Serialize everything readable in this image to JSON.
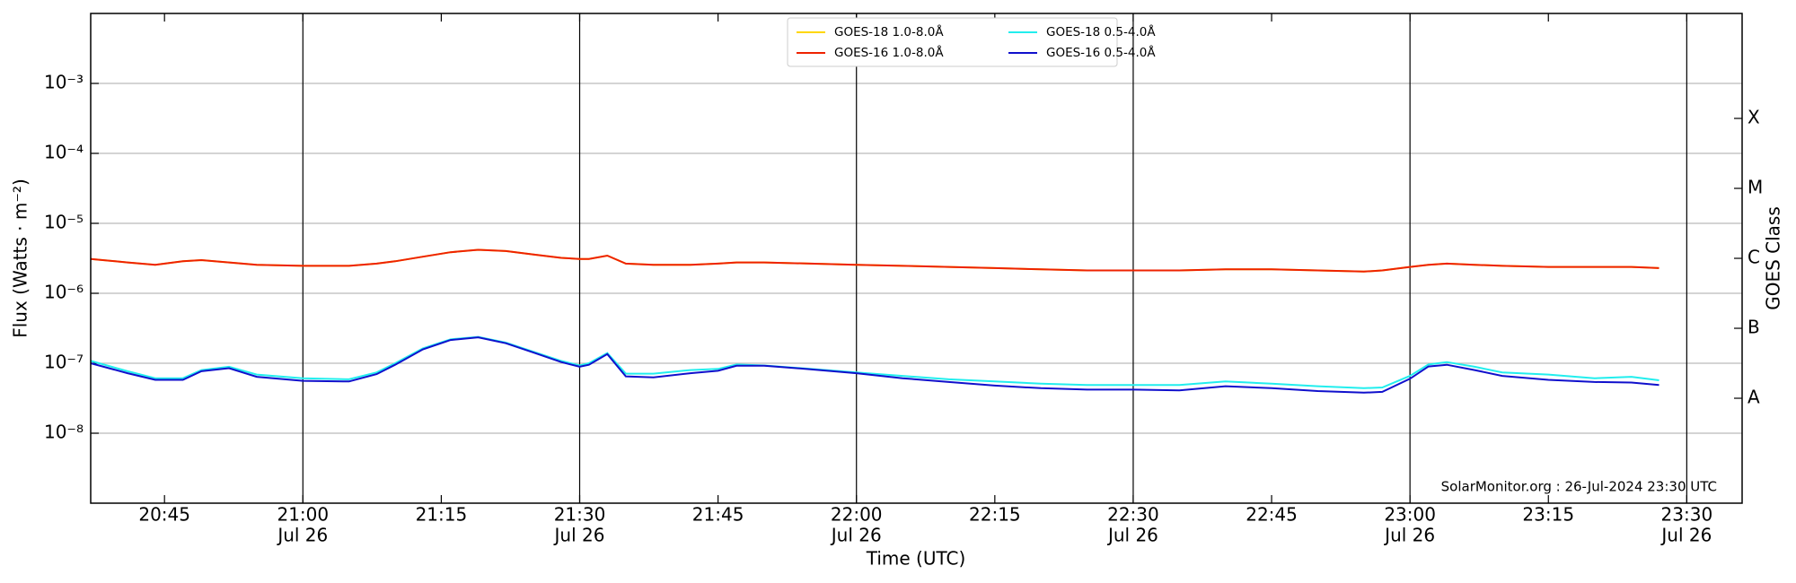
{
  "chart_data": {
    "type": "line",
    "ylabel": "Flux (Watts · m⁻²)",
    "xlabel": "Time (UTC)",
    "y2label": "GOES Class",
    "annotation": "SolarMonitor.org : 26-Jul-2024 23:30 UTC",
    "ylog": true,
    "grid": true,
    "legend": "upper center",
    "xlim": [
      "20:37",
      "23:36"
    ],
    "xticks": [
      "20:45",
      {
        "value": "21:00",
        "label": "21:00",
        "date": "Jul 26"
      },
      "21:15",
      {
        "value": "21:30",
        "label": "21:30",
        "date": "Jul 26"
      },
      "21:45",
      {
        "value": "22:00",
        "label": "22:00",
        "date": "Jul 26"
      },
      "22:15",
      {
        "value": "22:30",
        "label": "22:30",
        "date": "Jul 26"
      },
      "22:45",
      {
        "value": "23:00",
        "label": "23:00",
        "date": "Jul 26"
      },
      "23:15",
      {
        "value": "23:30",
        "label": "23:30",
        "date": "Jul 26"
      }
    ],
    "ylim": [
      1e-09,
      0.01
    ],
    "yticks": [
      {
        "value": 1e-08,
        "label": "10⁻⁸"
      },
      {
        "value": 1e-07,
        "label": "10⁻⁷"
      },
      {
        "value": 1e-06,
        "label": "10⁻⁶"
      },
      {
        "value": 1e-05,
        "label": "10⁻⁵"
      },
      {
        "value": 0.0001,
        "label": "10⁻⁴"
      },
      {
        "value": 0.001,
        "label": "10⁻³"
      }
    ],
    "y2lim": [
      1e-09,
      0.01
    ],
    "y2ticks": [
      {
        "value": 3.16e-08,
        "label": "A"
      },
      {
        "value": 3.16e-07,
        "label": "B"
      },
      {
        "value": 3.16e-06,
        "label": "C"
      },
      {
        "value": 3.16e-05,
        "label": "M"
      },
      {
        "value": 0.000316,
        "label": "X"
      }
    ],
    "x": [
      "20:37",
      "20:41",
      "20:44",
      "20:47",
      "20:49",
      "20:52",
      "20:55",
      "21:00",
      "21:05",
      "21:08",
      "21:10",
      "21:13",
      "21:16",
      "21:19",
      "21:22",
      "21:25",
      "21:28",
      "21:30",
      "21:31",
      "21:33",
      "21:35",
      "21:38",
      "21:42",
      "21:45",
      "21:47",
      "21:50",
      "21:55",
      "22:00",
      "22:05",
      "22:10",
      "22:15",
      "22:20",
      "22:25",
      "22:30",
      "22:35",
      "22:40",
      "22:45",
      "22:50",
      "22:55",
      "22:57",
      "23:00",
      "23:02",
      "23:04",
      "23:07",
      "23:10",
      "23:15",
      "23:20",
      "23:24",
      "23:27"
    ],
    "series": [
      {
        "name": "GOES-18 1.0-8.0Å",
        "color": "#ffd700",
        "values": [
          3.1e-06,
          2.76e-06,
          2.56e-06,
          2.87e-06,
          2.98e-06,
          2.76e-06,
          2.56e-06,
          2.47e-06,
          2.47e-06,
          2.66e-06,
          2.87e-06,
          3.33e-06,
          3.87e-06,
          4.18e-06,
          4.02e-06,
          3.59e-06,
          3.21e-06,
          3.1e-06,
          3.1e-06,
          3.46e-06,
          2.66e-06,
          2.56e-06,
          2.56e-06,
          2.66e-06,
          2.76e-06,
          2.76e-06,
          2.66e-06,
          2.56e-06,
          2.47e-06,
          2.38e-06,
          2.29e-06,
          2.2e-06,
          2.12e-06,
          2.12e-06,
          2.12e-06,
          2.2e-06,
          2.2e-06,
          2.12e-06,
          2.04e-06,
          2.12e-06,
          2.38e-06,
          2.56e-06,
          2.66e-06,
          2.56e-06,
          2.47e-06,
          2.38e-06,
          2.38e-06,
          2.38e-06,
          2.29e-06
        ]
      },
      {
        "name": "GOES-16 1.0-8.0Å",
        "color": "#ee2200",
        "values": [
          3.1e-06,
          2.76e-06,
          2.56e-06,
          2.87e-06,
          2.98e-06,
          2.76e-06,
          2.56e-06,
          2.47e-06,
          2.47e-06,
          2.66e-06,
          2.87e-06,
          3.33e-06,
          3.87e-06,
          4.18e-06,
          4.02e-06,
          3.59e-06,
          3.21e-06,
          3.1e-06,
          3.1e-06,
          3.46e-06,
          2.66e-06,
          2.56e-06,
          2.56e-06,
          2.66e-06,
          2.76e-06,
          2.76e-06,
          2.66e-06,
          2.56e-06,
          2.47e-06,
          2.38e-06,
          2.29e-06,
          2.2e-06,
          2.12e-06,
          2.12e-06,
          2.12e-06,
          2.2e-06,
          2.2e-06,
          2.12e-06,
          2.04e-06,
          2.12e-06,
          2.38e-06,
          2.56e-06,
          2.66e-06,
          2.56e-06,
          2.47e-06,
          2.38e-06,
          2.38e-06,
          2.38e-06,
          2.29e-06
        ]
      },
      {
        "name": "GOES-18 0.5-4.0Å",
        "color": "#22eeee",
        "values": [
          1.08e-07,
          7.7e-08,
          6.1e-08,
          6.1e-08,
          8e-08,
          8.9e-08,
          6.9e-08,
          6.1e-08,
          5.9e-08,
          7.4e-08,
          1e-07,
          1.63e-07,
          2.2e-07,
          2.38e-07,
          1.97e-07,
          1.46e-07,
          1.08e-07,
          9.3e-08,
          1e-07,
          1.4e-07,
          7.1e-08,
          7.1e-08,
          8e-08,
          8.3e-08,
          9.6e-08,
          9.3e-08,
          8.3e-08,
          7.4e-08,
          6.6e-08,
          5.9e-08,
          5.5e-08,
          5.1e-08,
          4.9e-08,
          4.9e-08,
          4.9e-08,
          5.5e-08,
          5.1e-08,
          4.7e-08,
          4.4e-08,
          4.5e-08,
          6.6e-08,
          9.6e-08,
          1.04e-07,
          8.9e-08,
          7.4e-08,
          6.9e-08,
          6.1e-08,
          6.4e-08,
          5.7e-08
        ]
      },
      {
        "name": "GOES-16 0.5-4.0Å",
        "color": "#1010cc",
        "values": [
          1e-07,
          7.2e-08,
          5.8e-08,
          5.8e-08,
          7.7e-08,
          8.5e-08,
          6.4e-08,
          5.6e-08,
          5.5e-08,
          7e-08,
          9.5e-08,
          1.58e-07,
          2.15e-07,
          2.35e-07,
          1.93e-07,
          1.42e-07,
          1.04e-07,
          8.9e-08,
          9.5e-08,
          1.35e-07,
          6.5e-08,
          6.3e-08,
          7.2e-08,
          7.8e-08,
          9.2e-08,
          9.2e-08,
          8.2e-08,
          7.2e-08,
          6.1e-08,
          5.4e-08,
          4.8e-08,
          4.4e-08,
          4.2e-08,
          4.2e-08,
          4.1e-08,
          4.7e-08,
          4.4e-08,
          4e-08,
          3.8e-08,
          3.9e-08,
          6e-08,
          9e-08,
          9.5e-08,
          8e-08,
          6.6e-08,
          5.8e-08,
          5.4e-08,
          5.3e-08,
          4.9e-08
        ]
      }
    ]
  }
}
